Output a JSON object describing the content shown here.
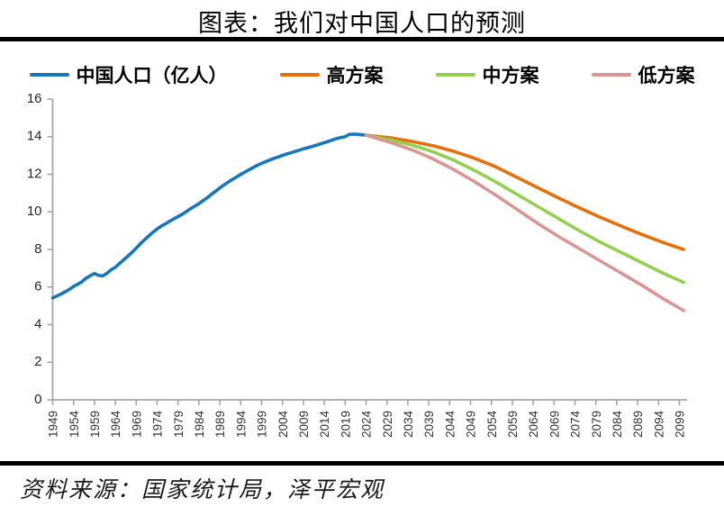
{
  "title": "图表：我们对中国人口的预测",
  "source": "资料来源：国家统计局，泽平宏观",
  "legend": [
    {
      "label": "中国人口（亿人）",
      "color": "#1777be"
    },
    {
      "label": "高方案",
      "color": "#e8700a"
    },
    {
      "label": "中方案",
      "color": "#92d050"
    },
    {
      "label": "低方案",
      "color": "#d99694"
    }
  ],
  "colors": {
    "history": "#1777be",
    "high": "#e8700a",
    "medium": "#92d050",
    "low": "#d99694",
    "axis": "#a6a6a6",
    "rule": "#000000"
  },
  "chart_data": {
    "type": "line",
    "title": "图表：我们对中国人口的预测",
    "xlabel": "",
    "ylabel": "",
    "x_range": [
      1949,
      2100
    ],
    "ylim": [
      0,
      16
    ],
    "y_ticks": [
      0,
      2,
      4,
      6,
      8,
      10,
      12,
      14,
      16
    ],
    "x_ticks": [
      1949,
      1954,
      1959,
      1964,
      1969,
      1974,
      1979,
      1984,
      1989,
      1994,
      1999,
      2004,
      2009,
      2014,
      2019,
      2024,
      2029,
      2034,
      2039,
      2044,
      2049,
      2054,
      2059,
      2064,
      2069,
      2074,
      2079,
      2084,
      2089,
      2094,
      2099
    ],
    "grid": false,
    "legend_position": "top",
    "series": [
      {
        "name": "中国人口（亿人）",
        "role": "history",
        "start_year": 1949,
        "step": 1,
        "values": [
          5.42,
          5.52,
          5.63,
          5.75,
          5.88,
          6.03,
          6.15,
          6.28,
          6.47,
          6.6,
          6.72,
          6.62,
          6.59,
          6.73,
          6.92,
          7.05,
          7.25,
          7.45,
          7.64,
          7.85,
          8.07,
          8.3,
          8.52,
          8.72,
          8.92,
          9.09,
          9.24,
          9.37,
          9.5,
          9.63,
          9.75,
          9.87,
          10.01,
          10.17,
          10.3,
          10.44,
          10.59,
          10.75,
          10.93,
          11.1,
          11.27,
          11.43,
          11.58,
          11.72,
          11.85,
          11.99,
          12.11,
          12.24,
          12.36,
          12.48,
          12.58,
          12.67,
          12.76,
          12.85,
          12.92,
          13.0,
          13.08,
          13.14,
          13.21,
          13.28,
          13.35,
          13.41,
          13.47,
          13.54,
          13.61,
          13.68,
          13.75,
          13.83,
          13.9,
          13.95,
          14.0,
          14.12,
          14.13,
          14.12,
          14.1,
          14.08
        ]
      },
      {
        "name": "高方案",
        "role": "high",
        "points": [
          [
            2024,
            14.08
          ],
          [
            2030,
            13.93
          ],
          [
            2035,
            13.75
          ],
          [
            2040,
            13.52
          ],
          [
            2045,
            13.22
          ],
          [
            2050,
            12.85
          ],
          [
            2055,
            12.4
          ],
          [
            2060,
            11.85
          ],
          [
            2065,
            11.3
          ],
          [
            2070,
            10.75
          ],
          [
            2075,
            10.22
          ],
          [
            2080,
            9.72
          ],
          [
            2085,
            9.25
          ],
          [
            2090,
            8.8
          ],
          [
            2095,
            8.38
          ],
          [
            2100,
            8.0
          ]
        ]
      },
      {
        "name": "中方案",
        "role": "medium",
        "points": [
          [
            2024,
            14.08
          ],
          [
            2030,
            13.82
          ],
          [
            2035,
            13.55
          ],
          [
            2040,
            13.2
          ],
          [
            2045,
            12.75
          ],
          [
            2050,
            12.2
          ],
          [
            2055,
            11.6
          ],
          [
            2060,
            10.95
          ],
          [
            2065,
            10.3
          ],
          [
            2070,
            9.65
          ],
          [
            2075,
            9.0
          ],
          [
            2080,
            8.4
          ],
          [
            2085,
            7.85
          ],
          [
            2090,
            7.3
          ],
          [
            2095,
            6.75
          ],
          [
            2100,
            6.25
          ]
        ]
      },
      {
        "name": "低方案",
        "role": "low",
        "points": [
          [
            2024,
            14.08
          ],
          [
            2030,
            13.68
          ],
          [
            2035,
            13.3
          ],
          [
            2040,
            12.82
          ],
          [
            2045,
            12.25
          ],
          [
            2050,
            11.6
          ],
          [
            2055,
            10.9
          ],
          [
            2060,
            10.15
          ],
          [
            2065,
            9.4
          ],
          [
            2070,
            8.7
          ],
          [
            2075,
            8.05
          ],
          [
            2080,
            7.4
          ],
          [
            2085,
            6.75
          ],
          [
            2090,
            6.1
          ],
          [
            2095,
            5.4
          ],
          [
            2100,
            4.75
          ]
        ]
      }
    ]
  }
}
